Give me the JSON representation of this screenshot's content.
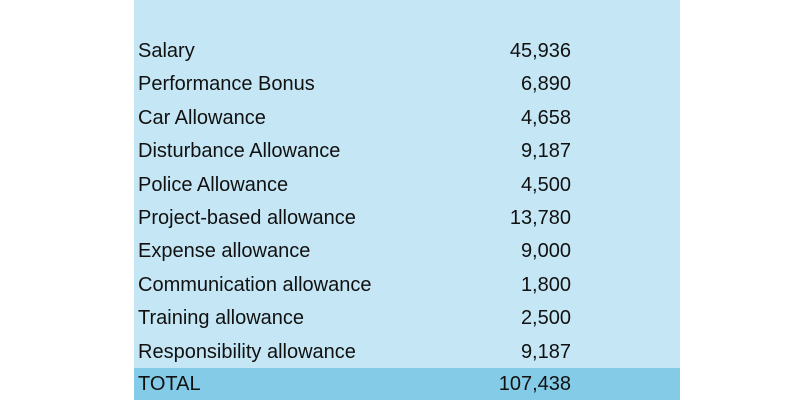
{
  "table": {
    "rows": [
      {
        "label": "Salary",
        "value": "45,936"
      },
      {
        "label": "Performance Bonus",
        "value": "6,890"
      },
      {
        "label": "Car Allowance",
        "value": "4,658"
      },
      {
        "label": "Disturbance Allowance",
        "value": "9,187"
      },
      {
        "label": "Police Allowance",
        "value": "4,500"
      },
      {
        "label": "Project-based allowance",
        "value": "13,780"
      },
      {
        "label": "Expense allowance",
        "value": "9,000"
      },
      {
        "label": "Communication allowance",
        "value": "1,800"
      },
      {
        "label": "Training allowance",
        "value": "2,500"
      },
      {
        "label": "Responsibility allowance",
        "value": "9,187"
      }
    ],
    "total": {
      "label": "TOTAL",
      "value": "107,438"
    },
    "colors": {
      "background": "#c5e6f5",
      "total_background": "#84cbe8"
    }
  }
}
